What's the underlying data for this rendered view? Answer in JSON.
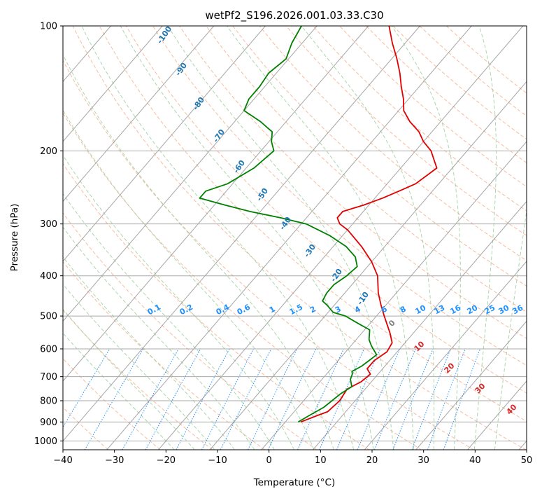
{
  "chart_data": {
    "type": "line",
    "title": "wetPf2_S196.2026.001.03.33.C30",
    "xlabel": "Temperature (°C)",
    "ylabel": "Pressure (hPa)",
    "xlim": [
      -40,
      50
    ],
    "ylim": [
      1050,
      100
    ],
    "y_scale": "log",
    "skew_deg_per_decade": 69.3,
    "grid": true,
    "x_ticks": [
      -40,
      -30,
      -20,
      -10,
      0,
      10,
      20,
      30,
      40,
      50
    ],
    "y_ticks": [
      100,
      200,
      300,
      400,
      500,
      600,
      700,
      800,
      900,
      1000
    ],
    "series": [
      {
        "color": "#e00000",
        "points": [
          [
            900,
            3.0
          ],
          [
            870,
            5.0
          ],
          [
            850,
            6.5
          ],
          [
            800,
            7.0
          ],
          [
            750,
            6.5
          ],
          [
            720,
            8.0
          ],
          [
            690,
            8.5
          ],
          [
            670,
            7.0
          ],
          [
            640,
            7.0
          ],
          [
            610,
            8.0
          ],
          [
            580,
            7.5
          ],
          [
            550,
            5.5
          ],
          [
            500,
            1.5
          ],
          [
            470,
            -1.0
          ],
          [
            440,
            -3.5
          ],
          [
            400,
            -6.5
          ],
          [
            370,
            -10.0
          ],
          [
            340,
            -14.5
          ],
          [
            310,
            -20.0
          ],
          [
            300,
            -22.5
          ],
          [
            290,
            -24.0
          ],
          [
            280,
            -24.0
          ],
          [
            270,
            -21.0
          ],
          [
            260,
            -18.5
          ],
          [
            250,
            -16.5
          ],
          [
            240,
            -14.5
          ],
          [
            220,
            -13.0
          ],
          [
            200,
            -17.0
          ],
          [
            190,
            -20.0
          ],
          [
            180,
            -22.5
          ],
          [
            170,
            -26.0
          ],
          [
            160,
            -29.0
          ],
          [
            150,
            -31.0
          ],
          [
            140,
            -33.5
          ],
          [
            130,
            -36.0
          ],
          [
            120,
            -39.0
          ],
          [
            110,
            -42.5
          ],
          [
            100,
            -46.0
          ]
        ]
      },
      {
        "color": "#008000",
        "points": [
          [
            900,
            2.5
          ],
          [
            870,
            3.5
          ],
          [
            830,
            5.0
          ],
          [
            800,
            5.5
          ],
          [
            770,
            6.0
          ],
          [
            740,
            7.0
          ],
          [
            710,
            5.5
          ],
          [
            690,
            5.0
          ],
          [
            680,
            4.5
          ],
          [
            660,
            5.5
          ],
          [
            640,
            6.0
          ],
          [
            620,
            6.5
          ],
          [
            590,
            4.0
          ],
          [
            570,
            2.5
          ],
          [
            540,
            1.0
          ],
          [
            520,
            -2.5
          ],
          [
            500,
            -6.0
          ],
          [
            490,
            -9.0
          ],
          [
            470,
            -11.5
          ],
          [
            460,
            -13.0
          ],
          [
            440,
            -13.5
          ],
          [
            420,
            -13.5
          ],
          [
            400,
            -12.5
          ],
          [
            380,
            -12.0
          ],
          [
            360,
            -14.0
          ],
          [
            340,
            -17.5
          ],
          [
            320,
            -22.5
          ],
          [
            300,
            -29.0
          ],
          [
            290,
            -35.0
          ],
          [
            280,
            -42.0
          ],
          [
            270,
            -48.0
          ],
          [
            260,
            -54.0
          ],
          [
            250,
            -54.0
          ],
          [
            240,
            -51.0
          ],
          [
            220,
            -48.5
          ],
          [
            200,
            -47.5
          ],
          [
            190,
            -49.5
          ],
          [
            180,
            -51.0
          ],
          [
            170,
            -55.0
          ],
          [
            160,
            -60.0
          ],
          [
            150,
            -61.0
          ],
          [
            140,
            -61.0
          ],
          [
            130,
            -61.5
          ],
          [
            120,
            -60.5
          ],
          [
            110,
            -62.0
          ],
          [
            100,
            -63.0
          ]
        ]
      }
    ],
    "dry_adiabat_labels": [
      "-100",
      "-90",
      "-80",
      "-70",
      "-60",
      "-50",
      "-40",
      "-30",
      "-20",
      "-10"
    ],
    "moist_adiabat_labels": [
      "0",
      "10",
      "20",
      "30",
      "40"
    ],
    "mixing_ratio_labels": [
      "0.1",
      "0.2",
      "0.4",
      "0.6",
      "1",
      "1.5",
      "2",
      "3",
      "4",
      "6",
      "8",
      "10",
      "13",
      "16",
      "20",
      "25",
      "30",
      "36"
    ],
    "colors": {
      "temperature": "#e00000",
      "dewpoint": "#008000",
      "dry_adiabat": "#f4a582",
      "moist_adiabat": "#99cc99",
      "mixing_ratio": "#1e90ff",
      "isotherm": "#888888",
      "grid": "#aaaaaa"
    }
  }
}
